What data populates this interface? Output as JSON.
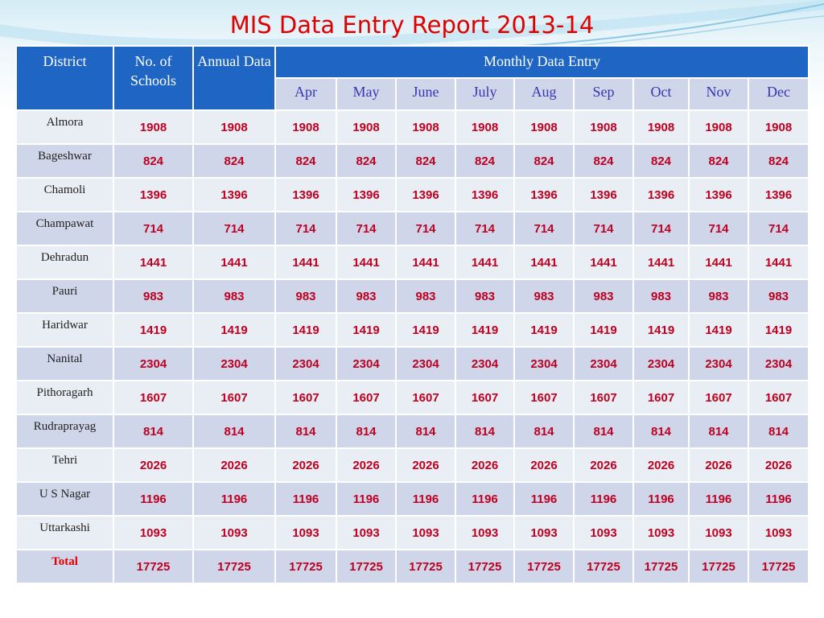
{
  "title": "MIS Data Entry Report 2013-14",
  "table": {
    "header": {
      "district": "District",
      "schools": "No. of Schools",
      "annual": "Annual Data",
      "monthly": "Monthly Data Entry",
      "months": [
        "Apr",
        "May",
        "June",
        "July",
        "Aug",
        "Sep",
        "Oct",
        "Nov",
        "Dec"
      ]
    },
    "rows": [
      [
        "Almora",
        1908,
        1908,
        1908,
        1908,
        1908,
        1908,
        1908,
        1908,
        1908,
        1908,
        1908
      ],
      [
        "Bageshwar",
        824,
        824,
        824,
        824,
        824,
        824,
        824,
        824,
        824,
        824,
        824
      ],
      [
        "Chamoli",
        1396,
        1396,
        1396,
        1396,
        1396,
        1396,
        1396,
        1396,
        1396,
        1396,
        1396
      ],
      [
        "Champawat",
        714,
        714,
        714,
        714,
        714,
        714,
        714,
        714,
        714,
        714,
        714
      ],
      [
        "Dehradun",
        1441,
        1441,
        1441,
        1441,
        1441,
        1441,
        1441,
        1441,
        1441,
        1441,
        1441
      ],
      [
        "Pauri",
        983,
        983,
        983,
        983,
        983,
        983,
        983,
        983,
        983,
        983,
        983
      ],
      [
        "Haridwar",
        1419,
        1419,
        1419,
        1419,
        1419,
        1419,
        1419,
        1419,
        1419,
        1419,
        1419
      ],
      [
        "Nanital",
        2304,
        2304,
        2304,
        2304,
        2304,
        2304,
        2304,
        2304,
        2304,
        2304,
        2304
      ],
      [
        "Pithoragarh",
        1607,
        1607,
        1607,
        1607,
        1607,
        1607,
        1607,
        1607,
        1607,
        1607,
        1607
      ],
      [
        "Rudraprayag",
        814,
        814,
        814,
        814,
        814,
        814,
        814,
        814,
        814,
        814,
        814
      ],
      [
        "Tehri",
        2026,
        2026,
        2026,
        2026,
        2026,
        2026,
        2026,
        2026,
        2026,
        2026,
        2026
      ],
      [
        "U S Nagar",
        1196,
        1196,
        1196,
        1196,
        1196,
        1196,
        1196,
        1196,
        1196,
        1196,
        1196
      ],
      [
        "Uttarkashi",
        1093,
        1093,
        1093,
        1093,
        1093,
        1093,
        1093,
        1093,
        1093,
        1093,
        1093
      ],
      [
        "Total",
        17725,
        17725,
        17725,
        17725,
        17725,
        17725,
        17725,
        17725,
        17725,
        17725,
        17725
      ]
    ]
  }
}
